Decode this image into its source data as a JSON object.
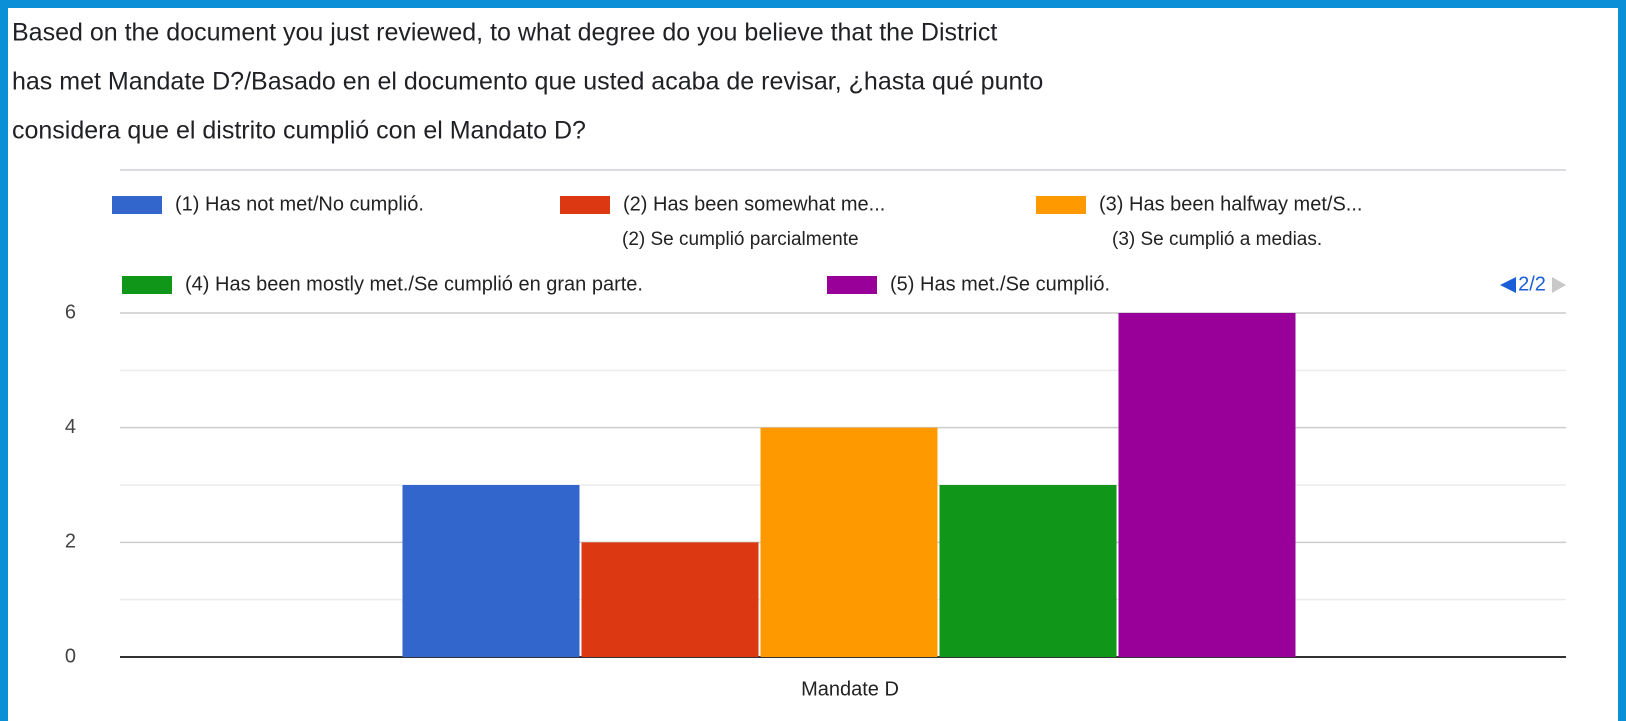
{
  "chart_data": {
    "type": "bar",
    "title": [
      "Based on the document you just reviewed, to what degree do you believe that the District",
      "has met Mandate D?/Basado en el documento que usted acaba de revisar, ¿hasta qué punto",
      "considera que el distrito cumplió con el Mandato D?"
    ],
    "categories": [
      "Mandate D"
    ],
    "series": [
      {
        "name": "(1) Has not met/No cumplió.",
        "color": "#3366cc",
        "values": [
          3
        ]
      },
      {
        "name": "(2) Has been somewhat me...",
        "color": "#dc3912",
        "values": [
          2
        ]
      },
      {
        "name": "(3) Has been halfway met/S...",
        "color": "#ff9900",
        "values": [
          4
        ]
      },
      {
        "name": "(4) Has been mostly met./Se cumplió en gran parte.",
        "color": "#109618",
        "values": [
          3
        ]
      },
      {
        "name": "(5) Has met./Se cumplió.",
        "color": "#990099",
        "values": [
          6
        ]
      }
    ],
    "annotations": [
      "(2) Se cumplió parcialmente",
      "(3) Se cumplió a medias."
    ],
    "legend_page": "2/2",
    "ylim": [
      0,
      6
    ],
    "yticks": [
      0,
      2,
      4,
      6
    ],
    "minor_gridlines": [
      1,
      3,
      5
    ],
    "grid": true
  }
}
